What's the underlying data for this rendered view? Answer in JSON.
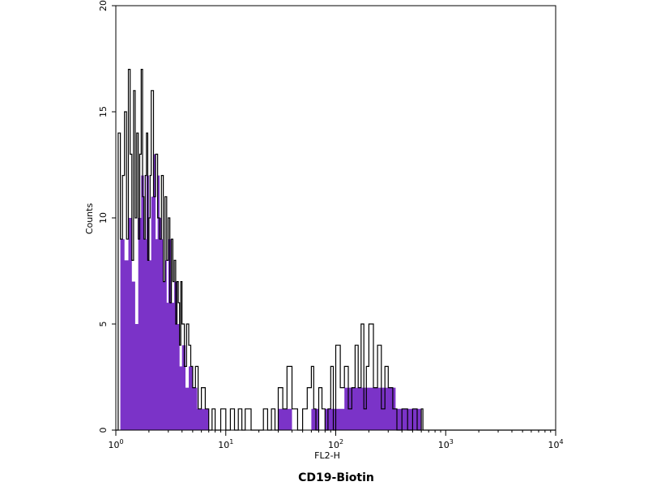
{
  "chart_data": {
    "type": "histogram",
    "xlabel": "FL2-H",
    "ylabel": "Counts",
    "x_scale": "log",
    "xlim": [
      1,
      10000
    ],
    "ylim": [
      0,
      20
    ],
    "x_ticks": [
      {
        "value": 1,
        "base": "10",
        "exp": "0"
      },
      {
        "value": 10,
        "base": "10",
        "exp": "1"
      },
      {
        "value": 100,
        "base": "10",
        "exp": "2"
      },
      {
        "value": 1000,
        "base": "10",
        "exp": "3"
      },
      {
        "value": 10000,
        "base": "10",
        "exp": "4"
      }
    ],
    "y_ticks": [
      "0",
      "5",
      "10",
      "15",
      "20"
    ],
    "fill_color": "#7b33c8",
    "outline_color": "#000000",
    "grid": false,
    "fill_series": {
      "x": [
        1.0,
        1.1,
        1.2,
        1.3,
        1.4,
        1.5,
        1.6,
        1.7,
        1.8,
        1.9,
        2.0,
        2.1,
        2.2,
        2.3,
        2.4,
        2.5,
        2.6,
        2.7,
        2.8,
        2.9,
        3.0,
        3.2,
        3.4,
        3.6,
        3.8,
        4.0,
        4.3,
        4.6,
        5.0,
        5.5,
        6.0,
        7.0,
        8.0,
        10,
        12,
        15,
        20,
        25,
        30,
        35,
        40,
        50,
        60,
        70,
        80,
        100,
        120,
        150,
        200,
        250,
        300,
        350,
        400,
        500,
        550,
        600,
        1000,
        10000
      ],
      "y": [
        0,
        9,
        8,
        10,
        7,
        5,
        10,
        12,
        9,
        12,
        8,
        11,
        13,
        9,
        12,
        10,
        9,
        7,
        8,
        6,
        9,
        6,
        7,
        5,
        3,
        4,
        2,
        3,
        2,
        1,
        1,
        0,
        0,
        0,
        0,
        0,
        0,
        0,
        1,
        1,
        0,
        0,
        1,
        0,
        1,
        1,
        2,
        2,
        2,
        2,
        2,
        1,
        1,
        1,
        1,
        0,
        0,
        0
      ]
    },
    "outline_series": {
      "x": [
        1.0,
        1.05,
        1.1,
        1.15,
        1.2,
        1.25,
        1.3,
        1.35,
        1.4,
        1.45,
        1.5,
        1.55,
        1.6,
        1.65,
        1.7,
        1.75,
        1.8,
        1.85,
        1.9,
        1.95,
        2.0,
        2.05,
        2.1,
        2.2,
        2.3,
        2.4,
        2.5,
        2.6,
        2.7,
        2.8,
        2.9,
        3.0,
        3.1,
        3.2,
        3.3,
        3.4,
        3.5,
        3.6,
        3.7,
        3.8,
        3.9,
        4.0,
        4.2,
        4.4,
        4.6,
        4.8,
        5.0,
        5.3,
        5.6,
        6.0,
        6.5,
        7.0,
        7.5,
        8.0,
        9.0,
        10,
        11,
        12,
        13,
        14,
        15,
        17,
        19,
        22,
        24,
        26,
        28,
        30,
        33,
        36,
        40,
        45,
        50,
        55,
        60,
        63,
        66,
        70,
        75,
        80,
        85,
        90,
        95,
        100,
        110,
        120,
        130,
        140,
        150,
        160,
        170,
        180,
        190,
        200,
        220,
        240,
        260,
        280,
        300,
        330,
        360,
        400,
        450,
        500,
        550,
        600,
        620
      ],
      "y": [
        0,
        14,
        9,
        12,
        15,
        9,
        17,
        13,
        8,
        16,
        10,
        14,
        9,
        13,
        17,
        11,
        9,
        12,
        14,
        8,
        10,
        12,
        16,
        11,
        13,
        10,
        9,
        12,
        7,
        11,
        8,
        10,
        6,
        9,
        7,
        8,
        5,
        7,
        6,
        4,
        7,
        5,
        3,
        5,
        4,
        3,
        2,
        3,
        1,
        2,
        1,
        0,
        1,
        0,
        1,
        0,
        1,
        0,
        1,
        0,
        1,
        0,
        0,
        1,
        0,
        1,
        0,
        2,
        1,
        3,
        1,
        0,
        1,
        2,
        3,
        1,
        0,
        2,
        1,
        0,
        1,
        3,
        0,
        4,
        2,
        3,
        1,
        2,
        4,
        2,
        5,
        1,
        3,
        5,
        2,
        4,
        1,
        3,
        2,
        1,
        0,
        1,
        0,
        1,
        0,
        1,
        0
      ]
    }
  },
  "caption": "CD19-Biotin"
}
